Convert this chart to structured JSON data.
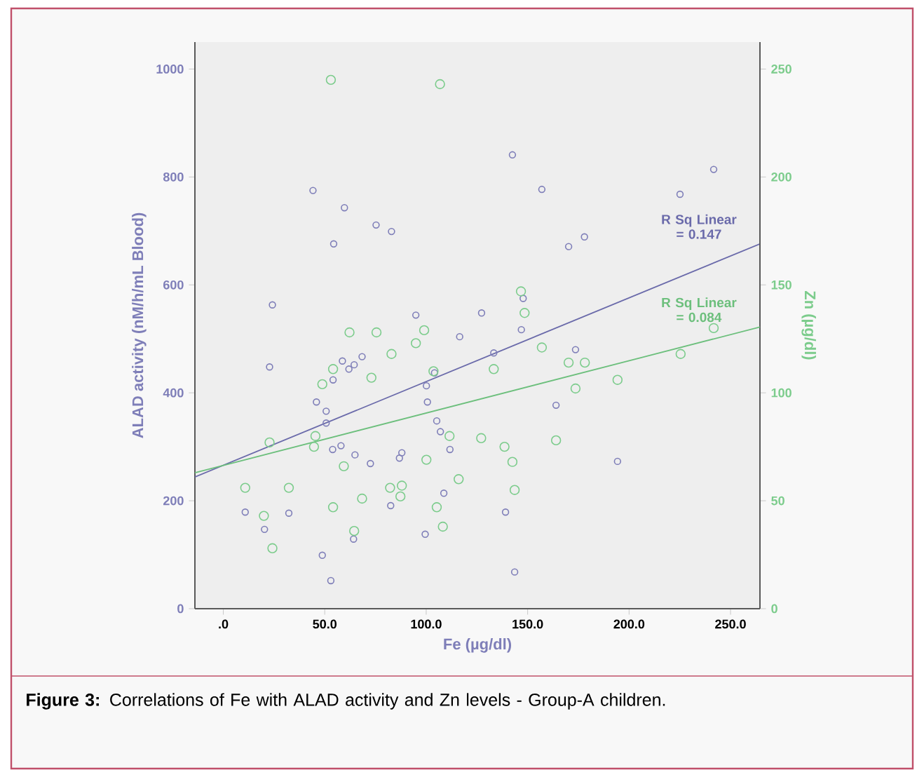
{
  "chart_data": {
    "type": "scatter",
    "xlabel": "Fe (µg/dl)",
    "ylabel": "ALAD activity (nM/h/mL Blood)",
    "y2label": "Zn (µg/dl)",
    "xlim": [
      -14,
      264.5
    ],
    "xticks": [
      {
        "value": 0,
        "label": ".0"
      },
      {
        "value": 50,
        "label": "50.0"
      },
      {
        "value": 100,
        "label": "100.0"
      },
      {
        "value": 150,
        "label": "150.0"
      },
      {
        "value": 200,
        "label": "200.0"
      },
      {
        "value": 250,
        "label": "250.0"
      }
    ],
    "ylim": [
      0,
      1050
    ],
    "yticks": [
      0,
      200,
      400,
      600,
      800,
      1000
    ],
    "y2lim": [
      0,
      262.5
    ],
    "y2ticks": [
      0,
      50,
      100,
      150,
      200,
      250
    ],
    "grid": false,
    "series": [
      {
        "marker": "circle",
        "color": "#7e7eb8",
        "x": [
          44.2,
          59.7,
          75.3,
          82.9,
          54.4,
          24.2,
          94.9,
          142.5,
          157,
          225.1,
          241.7,
          178,
          170.2,
          127.3,
          146.9,
          147.8,
          116.5,
          22.8,
          58.7,
          68.4,
          64.5,
          61.9,
          54.1,
          104.1,
          45.9,
          50.7,
          50.7,
          100.1,
          100.6,
          105.2,
          107,
          111.7,
          58,
          53.9,
          64.9,
          72.5,
          88,
          86.8,
          108.7,
          82.5,
          99.5,
          10.8,
          32.3,
          20.3,
          64.2,
          48.8,
          53,
          133.3,
          173.6,
          164,
          194.3,
          139.1,
          143.6
        ],
        "values": [
          775,
          743,
          711,
          699,
          676,
          563,
          544,
          841,
          777,
          768,
          814,
          689,
          671,
          548,
          517,
          575,
          504,
          448,
          459,
          467,
          452,
          444,
          424,
          437,
          383,
          366,
          344,
          413,
          383,
          348,
          328,
          295,
          302,
          295,
          285,
          269,
          289,
          279,
          214,
          191,
          138,
          179,
          177,
          147,
          129,
          99,
          52,
          474,
          480,
          377,
          273,
          179,
          68
        ]
      },
      {
        "marker": "circle",
        "axis": "y2",
        "color": "#7ccc8c",
        "x": [
          53,
          106.8,
          146.7,
          148.5,
          241.7,
          62.2,
          75.5,
          99,
          94.9,
          82.9,
          54.1,
          48.8,
          73,
          103.6,
          22.8,
          45.4,
          44.7,
          59.4,
          10.8,
          32.3,
          20,
          24.2,
          54.1,
          68.4,
          82.2,
          88,
          87.3,
          100.1,
          111.5,
          105.2,
          108.2,
          64.5,
          116,
          157,
          170.2,
          178.2,
          173.6,
          194.3,
          225.4,
          133.3,
          127.1,
          138.6,
          142.5,
          164,
          143.6
        ],
        "values": [
          245,
          243,
          147,
          137,
          130,
          128,
          128,
          129,
          123,
          118,
          111,
          104,
          107,
          110,
          77,
          80,
          75,
          66,
          56,
          56,
          43,
          28,
          47,
          51,
          56,
          57,
          52,
          69,
          80,
          47,
          38,
          36,
          60,
          121,
          114,
          114,
          102,
          106,
          118,
          111,
          79,
          75,
          68,
          78,
          55
        ]
      },
      {
        "type": "line",
        "marker": "none",
        "color": "#6a6aaa",
        "x": [
          -14,
          264.5
        ],
        "values": [
          244,
          676
        ]
      },
      {
        "type": "line",
        "marker": "none",
        "axis": "y2",
        "color": "#6cbf7c",
        "x": [
          -14,
          264.5
        ],
        "values": [
          63,
          130.5
        ]
      }
    ],
    "annotations": [
      "R Sq Linear = 0.147",
      "R Sq Linear = 0.084",
      "**Figure 3:** Correlations of Fe with ALAD activity and Zn levels - Group-A children."
    ]
  }
}
